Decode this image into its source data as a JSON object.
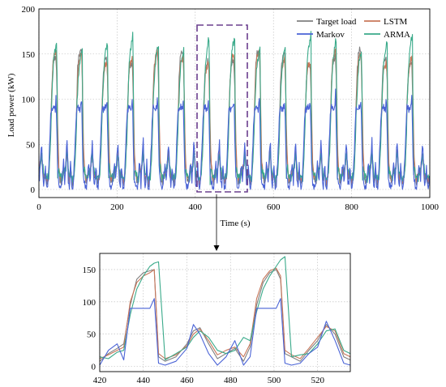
{
  "chart_data": [
    {
      "id": "main",
      "type": "line",
      "xlabel": "Time (s)",
      "ylabel": "Load power (kW)",
      "xlim": [
        0,
        1000
      ],
      "ylim": [
        0,
        200
      ],
      "xticks": [
        "0",
        "200",
        "400",
        "600",
        "800",
        "1000"
      ],
      "yticks": [
        "0",
        "50",
        "100",
        "150",
        "200"
      ],
      "grid": true,
      "legend_position": "top-right",
      "legend": [
        {
          "label": "Target load",
          "color": "#7f7f7f"
        },
        {
          "label": "LSTM",
          "color": "#c8775a"
        },
        {
          "label": "Markov",
          "color": "#4a63d6"
        },
        {
          "label": "ARMA",
          "color": "#3aaa8a"
        }
      ],
      "cycle_length_s": 65,
      "cycle_profile": {
        "target": [
          [
            0,
            8
          ],
          [
            3,
            12
          ],
          [
            6,
            25
          ],
          [
            9,
            16
          ],
          [
            12,
            28
          ],
          [
            15,
            45
          ],
          [
            18,
            18
          ],
          [
            21,
            8
          ],
          [
            24,
            22
          ],
          [
            27,
            8
          ],
          [
            30,
            6
          ],
          [
            33,
            18
          ],
          [
            36,
            45
          ],
          [
            38,
            70
          ],
          [
            40,
            100
          ],
          [
            42,
            130
          ],
          [
            44,
            140
          ],
          [
            46,
            148
          ],
          [
            48,
            150
          ],
          [
            50,
            152
          ],
          [
            52,
            150
          ],
          [
            54,
            120
          ],
          [
            56,
            60
          ],
          [
            58,
            30
          ],
          [
            60,
            18
          ],
          [
            62,
            10
          ],
          [
            65,
            8
          ]
        ],
        "lstm": [
          [
            0,
            12
          ],
          [
            3,
            14
          ],
          [
            6,
            22
          ],
          [
            9,
            20
          ],
          [
            12,
            30
          ],
          [
            15,
            40
          ],
          [
            18,
            20
          ],
          [
            21,
            12
          ],
          [
            24,
            18
          ],
          [
            27,
            10
          ],
          [
            30,
            10
          ],
          [
            33,
            15
          ],
          [
            36,
            40
          ],
          [
            38,
            60
          ],
          [
            40,
            95
          ],
          [
            42,
            120
          ],
          [
            44,
            138
          ],
          [
            46,
            145
          ],
          [
            48,
            148
          ],
          [
            50,
            150
          ],
          [
            52,
            153
          ],
          [
            54,
            130
          ],
          [
            56,
            75
          ],
          [
            58,
            35
          ],
          [
            60,
            22
          ],
          [
            62,
            14
          ],
          [
            65,
            12
          ]
        ],
        "markov": [
          [
            0,
            2
          ],
          [
            3,
            18
          ],
          [
            6,
            30
          ],
          [
            9,
            5
          ],
          [
            12,
            35
          ],
          [
            15,
            55
          ],
          [
            18,
            10
          ],
          [
            21,
            2
          ],
          [
            24,
            30
          ],
          [
            27,
            2
          ],
          [
            30,
            0
          ],
          [
            33,
            25
          ],
          [
            36,
            55
          ],
          [
            38,
            80
          ],
          [
            40,
            90
          ],
          [
            42,
            90
          ],
          [
            44,
            90
          ],
          [
            46,
            90
          ],
          [
            48,
            90
          ],
          [
            50,
            90
          ],
          [
            52,
            105
          ],
          [
            54,
            60
          ],
          [
            56,
            20
          ],
          [
            58,
            10
          ],
          [
            60,
            5
          ],
          [
            62,
            2
          ],
          [
            65,
            2
          ]
        ],
        "arma": [
          [
            0,
            15
          ],
          [
            3,
            10
          ],
          [
            6,
            20
          ],
          [
            9,
            22
          ],
          [
            12,
            25
          ],
          [
            15,
            42
          ],
          [
            18,
            25
          ],
          [
            21,
            15
          ],
          [
            24,
            15
          ],
          [
            27,
            12
          ],
          [
            30,
            14
          ],
          [
            33,
            12
          ],
          [
            36,
            35
          ],
          [
            38,
            55
          ],
          [
            40,
            90
          ],
          [
            42,
            115
          ],
          [
            44,
            135
          ],
          [
            46,
            148
          ],
          [
            48,
            155
          ],
          [
            50,
            160
          ],
          [
            52,
            165
          ],
          [
            54,
            168
          ],
          [
            56,
            10
          ],
          [
            58,
            25
          ],
          [
            60,
            20
          ],
          [
            62,
            15
          ],
          [
            65,
            15
          ]
        ]
      }
    },
    {
      "id": "zoom",
      "type": "line",
      "xlim": [
        420,
        535
      ],
      "ylim": [
        -8,
        175
      ],
      "xticks": [
        "420",
        "440",
        "460",
        "480",
        "500",
        "520"
      ],
      "yticks": [
        "0",
        "50",
        "100",
        "150"
      ],
      "grid": true,
      "series": [
        {
          "name": "Target load",
          "color": "#7f7f7f",
          "x": [
            420,
            424,
            428,
            431,
            434,
            437,
            440,
            443,
            445,
            447,
            450,
            455,
            460,
            463,
            466,
            470,
            474,
            478,
            482,
            486,
            489,
            492,
            495,
            498,
            501,
            503,
            505,
            508,
            512,
            516,
            520,
            524,
            528,
            532,
            535
          ],
          "y": [
            8,
            20,
            28,
            35,
            95,
            135,
            145,
            148,
            150,
            15,
            8,
            15,
            35,
            55,
            60,
            35,
            12,
            20,
            28,
            8,
            30,
            95,
            130,
            145,
            150,
            135,
            20,
            15,
            8,
            25,
            40,
            65,
            50,
            15,
            10
          ]
        },
        {
          "name": "LSTM",
          "color": "#c8775a",
          "x": [
            420,
            424,
            428,
            431,
            434,
            437,
            440,
            443,
            445,
            447,
            450,
            455,
            460,
            463,
            466,
            470,
            474,
            478,
            482,
            486,
            489,
            492,
            495,
            498,
            501,
            503,
            505,
            508,
            512,
            516,
            520,
            524,
            528,
            532,
            535
          ],
          "y": [
            12,
            18,
            25,
            30,
            100,
            130,
            140,
            145,
            150,
            20,
            12,
            18,
            32,
            50,
            58,
            40,
            18,
            25,
            30,
            15,
            35,
            105,
            135,
            148,
            152,
            140,
            25,
            18,
            12,
            28,
            45,
            62,
            55,
            20,
            15
          ]
        },
        {
          "name": "Markov",
          "color": "#4a63d6",
          "x": [
            420,
            424,
            428,
            431,
            434,
            437,
            440,
            443,
            445,
            447,
            450,
            455,
            460,
            463,
            466,
            470,
            474,
            478,
            482,
            486,
            489,
            492,
            495,
            498,
            501,
            503,
            505,
            508,
            512,
            516,
            520,
            524,
            528,
            532,
            535
          ],
          "y": [
            2,
            25,
            35,
            10,
            90,
            90,
            90,
            90,
            105,
            5,
            2,
            8,
            28,
            65,
            50,
            20,
            2,
            15,
            40,
            2,
            15,
            90,
            90,
            90,
            90,
            105,
            5,
            2,
            5,
            20,
            30,
            70,
            40,
            5,
            2
          ]
        },
        {
          "name": "ARMA",
          "color": "#3aaa8a",
          "x": [
            420,
            424,
            428,
            431,
            434,
            437,
            440,
            443,
            445,
            447,
            450,
            455,
            460,
            463,
            466,
            470,
            474,
            478,
            482,
            486,
            489,
            492,
            495,
            498,
            501,
            503,
            505,
            508,
            512,
            516,
            520,
            524,
            528,
            532,
            535
          ],
          "y": [
            15,
            12,
            22,
            25,
            80,
            120,
            140,
            155,
            160,
            162,
            10,
            20,
            30,
            45,
            55,
            45,
            25,
            20,
            25,
            45,
            40,
            85,
            120,
            140,
            155,
            165,
            170,
            15,
            18,
            20,
            35,
            55,
            58,
            25,
            20
          ]
        }
      ]
    }
  ]
}
